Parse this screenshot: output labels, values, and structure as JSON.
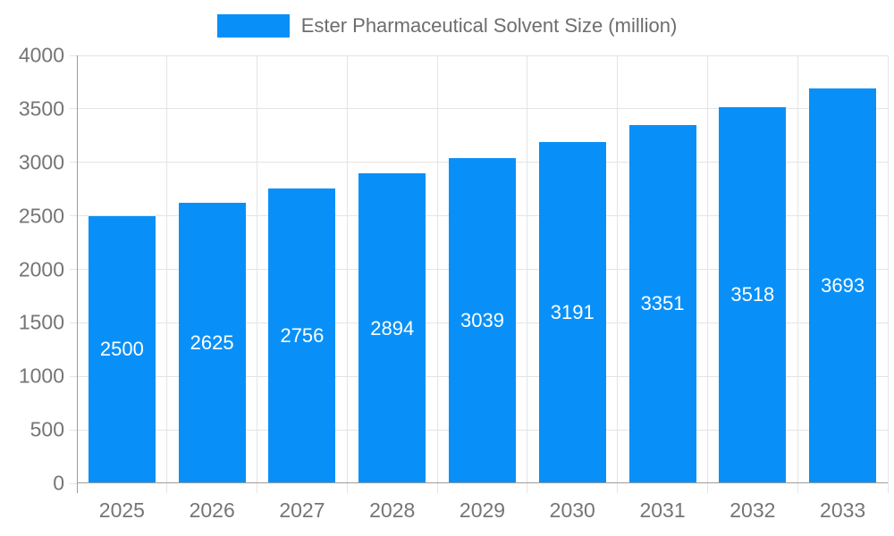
{
  "chart_data": {
    "type": "bar",
    "title": "Ester Pharmaceutical Solvent Size (million)",
    "categories": [
      "2025",
      "2026",
      "2027",
      "2028",
      "2029",
      "2030",
      "2031",
      "2032",
      "2033"
    ],
    "values": [
      2500,
      2625,
      2756,
      2894,
      3039,
      3191,
      3351,
      3518,
      3693
    ],
    "value_labels": [
      "2500",
      "2625",
      "2756",
      "2894",
      "3039",
      "3191",
      "3351",
      "3518",
      "3693"
    ],
    "xlabel": "",
    "ylabel": "",
    "ylim": [
      0,
      4000
    ],
    "ytick_step": 500,
    "ytick_labels": [
      "0",
      "500",
      "1000",
      "1500",
      "2000",
      "2500",
      "3000",
      "3500",
      "4000"
    ],
    "grid": true,
    "legend_position": "top",
    "bar_label_position": "inside-center",
    "colors": {
      "bar": "#0990f8",
      "bar_label_text": "#ffffff",
      "grid_line": "#e4e4e4",
      "axis_line": "#9c9c9c",
      "tick_label_text": "#757575",
      "legend_text": "#6d6d6d",
      "background": "#ffffff"
    }
  }
}
